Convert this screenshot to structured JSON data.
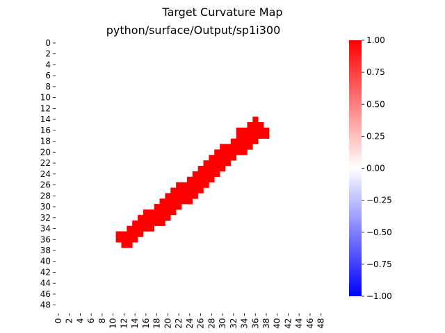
{
  "chart_data": {
    "type": "heatmap",
    "title": "Target Curvature Map",
    "subtitle": "python/surface/Output/sp1i300",
    "rows": 50,
    "cols": 50,
    "x_tick_labels": [
      "0",
      "2",
      "4",
      "6",
      "8",
      "10",
      "12",
      "14",
      "16",
      "18",
      "20",
      "22",
      "24",
      "26",
      "28",
      "30",
      "32",
      "34",
      "36",
      "38",
      "40",
      "42",
      "44",
      "46",
      "48"
    ],
    "y_tick_labels": [
      "0",
      "2",
      "4",
      "6",
      "8",
      "10",
      "12",
      "14",
      "16",
      "18",
      "20",
      "22",
      "24",
      "26",
      "28",
      "30",
      "32",
      "34",
      "36",
      "38",
      "40",
      "42",
      "44",
      "46",
      "48"
    ],
    "colorbar": {
      "min": -1.0,
      "max": 1.0,
      "ticks": [
        "1.00",
        "0.75",
        "0.50",
        "0.25",
        "0.00",
        "−0.25",
        "−0.50",
        "−0.75",
        "−1.00"
      ],
      "tick_values": [
        1.0,
        0.75,
        0.5,
        0.25,
        0.0,
        -0.25,
        -0.5,
        -0.75,
        -1.0
      ],
      "colormap": [
        "#0000ff",
        "#ffffff",
        "#ff0000"
      ]
    },
    "background_value": 0,
    "cells": [
      {
        "row": 14,
        "cols": [
          36,
          36
        ]
      },
      {
        "row": 15,
        "cols": [
          35,
          37
        ]
      },
      {
        "row": 16,
        "cols": [
          33,
          38
        ]
      },
      {
        "row": 17,
        "cols": [
          33,
          38
        ]
      },
      {
        "row": 18,
        "cols": [
          32,
          36
        ]
      },
      {
        "row": 19,
        "cols": [
          30,
          35
        ]
      },
      {
        "row": 20,
        "cols": [
          29,
          34
        ]
      },
      {
        "row": 21,
        "cols": [
          28,
          32
        ]
      },
      {
        "row": 22,
        "cols": [
          27,
          31
        ]
      },
      {
        "row": 23,
        "cols": [
          26,
          30
        ]
      },
      {
        "row": 24,
        "cols": [
          25,
          29
        ]
      },
      {
        "row": 25,
        "cols": [
          24,
          28
        ]
      },
      {
        "row": 26,
        "cols": [
          22,
          27
        ]
      },
      {
        "row": 27,
        "cols": [
          21,
          26
        ]
      },
      {
        "row": 28,
        "cols": [
          20,
          25
        ]
      },
      {
        "row": 29,
        "cols": [
          19,
          24
        ]
      },
      {
        "row": 30,
        "cols": [
          18,
          22
        ]
      },
      {
        "row": 31,
        "cols": [
          16,
          21
        ]
      },
      {
        "row": 32,
        "cols": [
          15,
          20
        ]
      },
      {
        "row": 33,
        "cols": [
          14,
          19
        ]
      },
      {
        "row": 34,
        "cols": [
          13,
          17
        ]
      },
      {
        "row": 35,
        "cols": [
          11,
          15
        ]
      },
      {
        "row": 36,
        "cols": [
          11,
          14
        ]
      },
      {
        "row": 37,
        "cols": [
          12,
          13
        ]
      }
    ],
    "cell_value": 1.0
  }
}
